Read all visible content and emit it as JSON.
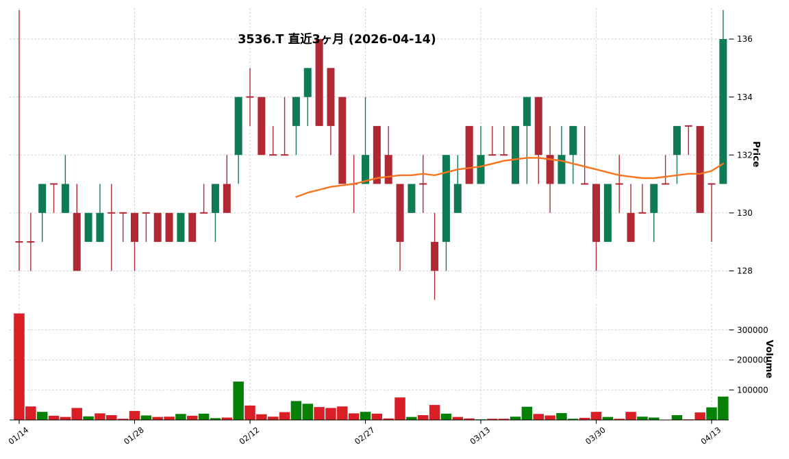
{
  "title": "3536.T 直近3ヶ月 (2026-04-14)",
  "colors": {
    "candle_up": "#0f7b53",
    "candle_down": "#b02833",
    "volume_up": "#078007",
    "volume_down": "#d91e25",
    "ma_line": "#f9731d",
    "grid": "#c6c6c6",
    "axis_text": "#000000"
  },
  "axes": {
    "price_label": "Price",
    "volume_label": "Volume"
  },
  "chart_data": {
    "type": "candlestick",
    "title": "3536.T 直近3ヶ月 (2026-04-14)",
    "legend_position": "none",
    "grid": "dashed",
    "x_axis": {
      "tick_labels": [
        "01/14",
        "01/28",
        "02/12",
        "02/27",
        "03/13",
        "03/30",
        "04/13"
      ],
      "tick_indices": [
        0,
        10,
        20,
        30,
        40,
        50,
        60
      ]
    },
    "price_axis": {
      "label": "Price",
      "ticks": [
        128,
        130,
        132,
        134,
        136
      ],
      "range": [
        126.8,
        137.2
      ]
    },
    "volume_axis": {
      "label": "Volume",
      "ticks": [
        100000,
        200000,
        300000
      ],
      "range": [
        0,
        360000
      ]
    },
    "columns": [
      "date",
      "open",
      "high",
      "low",
      "close",
      "volume",
      "candle_dir",
      "volume_dir"
    ],
    "candles": [
      [
        "01/14",
        129,
        137,
        128,
        129,
        355000,
        "d",
        "d"
      ],
      [
        "01/15",
        129,
        130,
        128,
        129,
        45000,
        "d",
        "d"
      ],
      [
        "01/16",
        130,
        131,
        129,
        131,
        27000,
        "u",
        "u"
      ],
      [
        "01/19",
        131,
        131,
        130,
        131,
        14000,
        "d",
        "d"
      ],
      [
        "01/20",
        130,
        132,
        130,
        131,
        10000,
        "u",
        "d"
      ],
      [
        "01/21",
        130,
        131,
        128,
        128,
        40000,
        "d",
        "d"
      ],
      [
        "01/22",
        129,
        130,
        129,
        130,
        12000,
        "u",
        "u"
      ],
      [
        "01/23",
        129,
        131,
        129,
        130,
        22000,
        "u",
        "d"
      ],
      [
        "01/26",
        130,
        131,
        128,
        130,
        16000,
        "d",
        "d"
      ],
      [
        "01/27",
        130,
        130,
        129,
        130,
        4000,
        "d",
        "d"
      ],
      [
        "01/28",
        130,
        130,
        128,
        129,
        30000,
        "d",
        "d"
      ],
      [
        "01/29",
        130,
        130,
        129,
        130,
        15000,
        "d",
        "u"
      ],
      [
        "01/30",
        130,
        130,
        129,
        129,
        10000,
        "d",
        "d"
      ],
      [
        "02/02",
        130,
        130,
        129,
        129,
        11000,
        "d",
        "d"
      ],
      [
        "02/03",
        129,
        130,
        129,
        130,
        20000,
        "u",
        "u"
      ],
      [
        "02/04",
        130,
        130,
        129,
        129,
        14000,
        "d",
        "d"
      ],
      [
        "02/05",
        130,
        131,
        130,
        130,
        21000,
        "d",
        "u"
      ],
      [
        "02/06",
        130,
        131,
        129,
        131,
        6000,
        "u",
        "u"
      ],
      [
        "02/09",
        131,
        132,
        130,
        130,
        8000,
        "d",
        "d"
      ],
      [
        "02/10",
        132,
        134,
        131,
        134,
        128000,
        "u",
        "u"
      ],
      [
        "02/12",
        134,
        135,
        133,
        134,
        48000,
        "d",
        "d"
      ],
      [
        "02/13",
        134,
        134,
        132,
        132,
        19000,
        "d",
        "d"
      ],
      [
        "02/16",
        132,
        133,
        132,
        132,
        11000,
        "d",
        "d"
      ],
      [
        "02/17",
        132,
        134,
        132,
        132,
        26000,
        "d",
        "d"
      ],
      [
        "02/18",
        133,
        134,
        132,
        134,
        63000,
        "u",
        "u"
      ],
      [
        "02/19",
        134,
        135,
        133,
        135,
        54000,
        "u",
        "u"
      ],
      [
        "02/20",
        136,
        136,
        133,
        133,
        43000,
        "d",
        "d"
      ],
      [
        "02/24",
        135,
        135,
        132,
        133,
        40000,
        "d",
        "d"
      ],
      [
        "02/25",
        134,
        134,
        131,
        131,
        45000,
        "d",
        "d"
      ],
      [
        "02/26",
        131,
        132,
        130,
        131,
        22000,
        "d",
        "d"
      ],
      [
        "02/27",
        131,
        134,
        131,
        132,
        27000,
        "u",
        "u"
      ],
      [
        "03/02",
        133,
        133,
        131,
        131,
        21000,
        "d",
        "d"
      ],
      [
        "03/03",
        132,
        133,
        131,
        131,
        5000,
        "d",
        "d"
      ],
      [
        "03/04",
        131,
        131,
        128,
        129,
        75000,
        "d",
        "d"
      ],
      [
        "03/05",
        130,
        131,
        130,
        131,
        10000,
        "u",
        "u"
      ],
      [
        "03/06",
        131,
        132,
        130,
        131,
        16000,
        "d",
        "d"
      ],
      [
        "03/09",
        129,
        130,
        127,
        128,
        50000,
        "d",
        "d"
      ],
      [
        "03/10",
        129,
        132,
        128,
        132,
        21000,
        "u",
        "u"
      ],
      [
        "03/11",
        130,
        132,
        130,
        131,
        10000,
        "u",
        "d"
      ],
      [
        "03/12",
        133,
        133,
        131,
        131,
        5000,
        "d",
        "d"
      ],
      [
        "03/13",
        131,
        133,
        131,
        132,
        2000,
        "u",
        "u"
      ],
      [
        "03/16",
        132,
        133,
        132,
        132,
        4000,
        "d",
        "d"
      ],
      [
        "03/17",
        132,
        133,
        132,
        132,
        4000,
        "d",
        "d"
      ],
      [
        "03/18",
        131,
        133,
        131,
        133,
        11000,
        "u",
        "u"
      ],
      [
        "03/19",
        133,
        134,
        131,
        134,
        44000,
        "u",
        "u"
      ],
      [
        "03/23",
        134,
        134,
        131,
        132,
        20000,
        "d",
        "d"
      ],
      [
        "03/24",
        132,
        133,
        130,
        131,
        15000,
        "d",
        "d"
      ],
      [
        "03/25",
        131,
        133,
        131,
        132,
        23000,
        "u",
        "u"
      ],
      [
        "03/26",
        132,
        133,
        131,
        133,
        4000,
        "u",
        "u"
      ],
      [
        "03/27",
        131,
        133,
        131,
        131,
        7000,
        "d",
        "d"
      ],
      [
        "03/30",
        131,
        131,
        128,
        129,
        27000,
        "d",
        "d"
      ],
      [
        "03/31",
        129,
        131,
        129,
        131,
        10000,
        "u",
        "u"
      ],
      [
        "04/01",
        131,
        132,
        130,
        131,
        4000,
        "d",
        "d"
      ],
      [
        "04/02",
        130,
        131,
        129,
        129,
        27000,
        "d",
        "d"
      ],
      [
        "04/03",
        130,
        131,
        130,
        130,
        11000,
        "d",
        "u"
      ],
      [
        "04/06",
        130,
        131,
        129,
        131,
        8000,
        "u",
        "u"
      ],
      [
        "04/07",
        131,
        132,
        131,
        131,
        1000,
        "d",
        "d"
      ],
      [
        "04/08",
        132,
        133,
        131,
        133,
        16000,
        "u",
        "u"
      ],
      [
        "04/09",
        133,
        133,
        132,
        133,
        2000,
        "d",
        "d"
      ],
      [
        "04/10",
        133,
        133,
        130,
        130,
        25000,
        "d",
        "d"
      ],
      [
        "04/13",
        131,
        131,
        129,
        131,
        42000,
        "d",
        "u"
      ],
      [
        "04/14",
        131,
        137,
        131,
        136,
        78000,
        "u",
        "u"
      ]
    ],
    "ma_line": {
      "name": "moving-average",
      "start_index": 24,
      "values": [
        130.55,
        130.7,
        130.8,
        130.9,
        130.95,
        131.0,
        131.1,
        131.2,
        131.25,
        131.3,
        131.3,
        131.35,
        131.3,
        131.4,
        131.5,
        131.55,
        131.6,
        131.7,
        131.8,
        131.85,
        131.9,
        131.9,
        131.85,
        131.8,
        131.7,
        131.6,
        131.5,
        131.4,
        131.3,
        131.25,
        131.2,
        131.2,
        131.25,
        131.3,
        131.35,
        131.35,
        131.45,
        131.7
      ]
    }
  }
}
